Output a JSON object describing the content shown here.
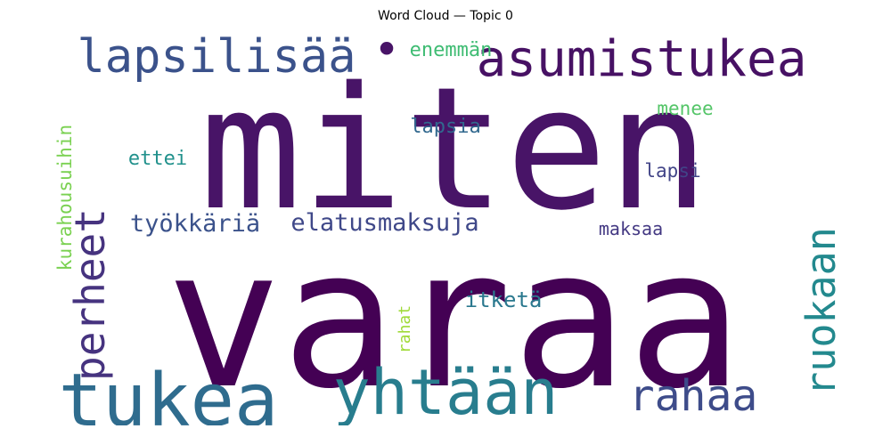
{
  "chart_data": {
    "type": "wordcloud",
    "title": "Word Cloud — Topic 0",
    "words": [
      {
        "text": "varaa",
        "color": "#440154"
      },
      {
        "text": "miten",
        "color": "#481467"
      },
      {
        "text": "tukea",
        "color": "#2f6c8e"
      },
      {
        "text": "yhtään",
        "color": "#287d8e"
      },
      {
        "text": "asumistukea",
        "color": "#471164"
      },
      {
        "text": "lapsilisää",
        "color": "#3b528b"
      },
      {
        "text": "rahaa",
        "color": "#3e4c8a"
      },
      {
        "text": "ruokaan",
        "color": "#23898e"
      },
      {
        "text": "perheet",
        "color": "#46337f"
      },
      {
        "text": "elatusmaksuja",
        "color": "#3f4889"
      },
      {
        "text": "työkkäriä",
        "color": "#3b528b"
      },
      {
        "text": "kurahousuihin",
        "color": "#7ad151"
      },
      {
        "text": "itketä",
        "color": "#2a788e"
      },
      {
        "text": "enemmän",
        "color": "#3fbc73"
      },
      {
        "text": "lapsia",
        "color": "#31688e"
      },
      {
        "text": "menee",
        "color": "#54c568"
      },
      {
        "text": "ettei",
        "color": "#21918c"
      },
      {
        "text": "lapsi",
        "color": "#414487"
      },
      {
        "text": "maksaa",
        "color": "#443983"
      },
      {
        "text": "rahat",
        "color": "#a0da39"
      },
      {
        "text": "•",
        "color": "#481467"
      }
    ]
  }
}
